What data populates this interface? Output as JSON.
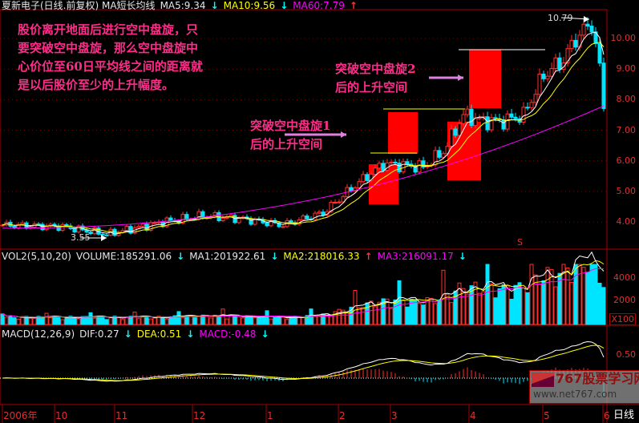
{
  "header": {
    "title": "夏新电子(日线.前复权) MA短长均线",
    "ma5": "MA5:9.34",
    "ma10": "MA10:9.56",
    "ma60": "MA60:7.79"
  },
  "vol_header": {
    "title": "VOL2(5,10,20)",
    "volume": "VOLUME:185291.06",
    "ma1": "MA1:201922.61",
    "ma2": "MA2:218016.33",
    "ma3": "MA3:216091.17"
  },
  "macd_header": {
    "title": "MACD(12,26,9)",
    "dif": "DIF:0.27",
    "dea": "DEA:0.51",
    "macd": "MACD:-0.48"
  },
  "annotations": {
    "main_note": [
      "股价离开地面后进行空中盘旋，只",
      "要突破空中盘旋，那么空中盘旋中",
      "心价位至60日平均线之间的距离就",
      "是以后股价至少的上升幅度。"
    ],
    "box1": [
      "突破空中盘旋1",
      "后的上升空间"
    ],
    "box2": [
      "突破空中盘旋2",
      "后的上升空间"
    ],
    "high_label": "10.79",
    "low_label": "3.55",
    "marker": "S"
  },
  "price_axis": [
    "10.00",
    "9.00",
    "8.00",
    "7.00",
    "6.00",
    "5.00",
    "4.00"
  ],
  "vol_axis": [
    "4000",
    "2000",
    "X100"
  ],
  "macd_axis": [
    "0.50"
  ],
  "date_axis": [
    "2006年",
    "10",
    "11",
    "12",
    "1",
    "2",
    "3",
    "4",
    "5",
    "6"
  ],
  "period_label": "日线",
  "watermark": {
    "title": "767股票学习网",
    "url": "www.net767.com"
  },
  "colors": {
    "up": "#ff3030",
    "down": "#00e5ff",
    "ma5": "#ffffff",
    "ma10": "#ffff00",
    "ma60": "#ff00ff",
    "note": "#ff2d8a"
  },
  "chart_data": {
    "type": "candlestick",
    "title": "夏新电子 日线",
    "bars": 151,
    "close_anchors": [
      [
        0,
        3.9
      ],
      [
        15,
        3.85
      ],
      [
        26,
        3.6
      ],
      [
        40,
        4.0
      ],
      [
        50,
        4.2
      ],
      [
        60,
        4.1
      ],
      [
        70,
        3.9
      ],
      [
        80,
        4.3
      ],
      [
        88,
        5.2
      ],
      [
        95,
        5.9
      ],
      [
        105,
        5.8
      ],
      [
        110,
        6.3
      ],
      [
        115,
        7.5
      ],
      [
        120,
        7.3
      ],
      [
        125,
        7.3
      ],
      [
        130,
        7.5
      ],
      [
        135,
        8.8
      ],
      [
        140,
        9.3
      ],
      [
        143,
        10.0
      ],
      [
        147,
        10.5
      ],
      [
        149,
        9.0
      ],
      [
        150,
        7.8
      ]
    ],
    "ylim": [
      3.3,
      10.9
    ],
    "high": 10.79,
    "low": 3.55
  }
}
